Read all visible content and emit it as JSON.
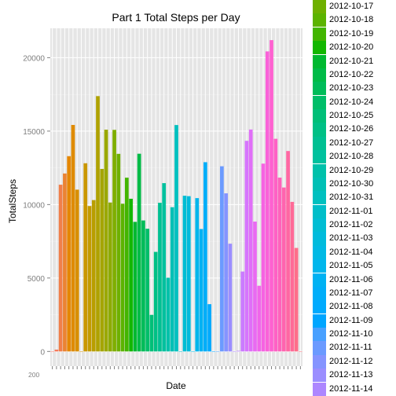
{
  "chart_data": {
    "type": "bar",
    "title": "Part 1 Total Steps per Day",
    "xlabel": "Date",
    "ylabel": "TotalSteps",
    "ylim": [
      -1000,
      22000
    ],
    "yticks": [
      0,
      5000,
      10000,
      15000,
      20000
    ],
    "grid": true,
    "legend_position": "right",
    "colors": {
      "panel_bg": "#E5E5E5",
      "grid_major": "#FFFFFF",
      "grid_minor": "#F2F2F2",
      "tick_text": "#7F7F7F"
    },
    "categories": [
      "2012-10-01",
      "2012-10-02",
      "2012-10-03",
      "2012-10-04",
      "2012-10-05",
      "2012-10-06",
      "2012-10-07",
      "2012-10-08",
      "2012-10-09",
      "2012-10-10",
      "2012-10-11",
      "2012-10-12",
      "2012-10-13",
      "2012-10-14",
      "2012-10-15",
      "2012-10-16",
      "2012-10-17",
      "2012-10-18",
      "2012-10-19",
      "2012-10-20",
      "2012-10-21",
      "2012-10-22",
      "2012-10-23",
      "2012-10-24",
      "2012-10-25",
      "2012-10-26",
      "2012-10-27",
      "2012-10-28",
      "2012-10-29",
      "2012-10-30",
      "2012-10-31",
      "2012-11-01",
      "2012-11-02",
      "2012-11-03",
      "2012-11-04",
      "2012-11-05",
      "2012-11-06",
      "2012-11-07",
      "2012-11-08",
      "2012-11-09",
      "2012-11-10",
      "2012-11-11",
      "2012-11-12",
      "2012-11-13",
      "2012-11-14",
      "2012-11-15",
      "2012-11-16",
      "2012-11-17",
      "2012-11-18",
      "2012-11-19",
      "2012-11-20",
      "2012-11-21",
      "2012-11-22",
      "2012-11-23",
      "2012-11-24",
      "2012-11-25",
      "2012-11-26",
      "2012-11-27",
      "2012-11-28",
      "2012-11-29",
      "2012-11-30"
    ],
    "values": [
      0,
      126,
      11352,
      12116,
      13294,
      15420,
      11015,
      0,
      12811,
      9900,
      10304,
      17382,
      12426,
      15098,
      10139,
      15084,
      13452,
      10056,
      11829,
      10395,
      8821,
      13460,
      8918,
      8355,
      2492,
      6778,
      10119,
      11458,
      5018,
      9819,
      15414,
      0,
      10600,
      10571,
      0,
      10439,
      8334,
      12883,
      3219,
      0,
      0,
      12608,
      10765,
      7336,
      0,
      41,
      5441,
      14339,
      15110,
      8841,
      4472,
      12787,
      20427,
      21194,
      14478,
      11834,
      11162,
      13646,
      10183,
      7047,
      0
    ],
    "legend_title": "Date",
    "legend_entries": [
      "2012-10-17",
      "2012-10-18",
      "2012-10-19",
      "2012-10-20",
      "2012-10-21",
      "2012-10-22",
      "2012-10-23",
      "2012-10-24",
      "2012-10-25",
      "2012-10-26",
      "2012-10-27",
      "2012-10-28",
      "2012-10-29",
      "2012-10-30",
      "2012-10-31",
      "2012-11-01",
      "2012-11-02",
      "2012-11-03",
      "2012-11-04",
      "2012-11-05",
      "2012-11-06",
      "2012-11-07",
      "2012-11-08",
      "2012-11-09",
      "2012-11-10",
      "2012-11-11",
      "2012-11-12",
      "2012-11-13",
      "2012-11-14"
    ],
    "x_tick_label_visible": "200"
  }
}
